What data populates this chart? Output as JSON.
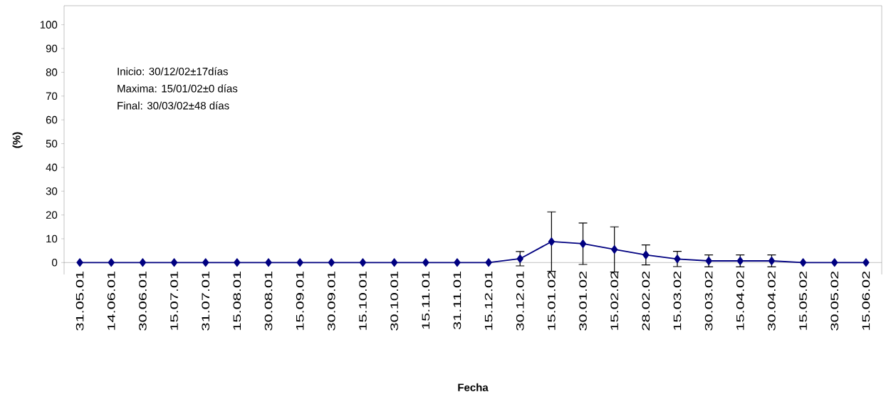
{
  "chart_data": {
    "type": "line",
    "xlabel": "Fecha",
    "ylabel": "(%)",
    "categories": [
      "31.05.01",
      "14.06.01",
      "30.06.01",
      "15.07.01",
      "31.07.01",
      "15.08.01",
      "30.08.01",
      "15.09.01",
      "30.09.01",
      "15.10.01",
      "30.10.01",
      "15.11.01",
      "31.11.01",
      "15.12.01",
      "30.12.01",
      "15.01.02",
      "30.01.02",
      "15.02.02",
      "28.02.02",
      "15.03.02",
      "30.03.02",
      "15.04.02",
      "30.04.02",
      "15.05.02",
      "30.05.02",
      "15.06.02"
    ],
    "series": [
      {
        "color": "#000080",
        "values": [
          0,
          0,
          0,
          0,
          0,
          0,
          0,
          0,
          0,
          0,
          0,
          0,
          0,
          0,
          1.6,
          8.8,
          7.9,
          5.5,
          3.2,
          1.5,
          0.7,
          0.7,
          0.7,
          0,
          0,
          0
        ],
        "errors": [
          null,
          null,
          null,
          null,
          null,
          null,
          null,
          null,
          null,
          null,
          null,
          null,
          null,
          null,
          3,
          12.5,
          8.7,
          9.5,
          4.2,
          3.2,
          2.5,
          2.5,
          2.5,
          null,
          null,
          null
        ]
      }
    ],
    "ylim": [
      -5,
      108
    ],
    "yticks": [
      0,
      10,
      20,
      30,
      40,
      50,
      60,
      70,
      80,
      90,
      100
    ],
    "marker": "diamond",
    "line_style": "solid",
    "grid": false,
    "annotations": [
      "Inicio:      30/12/02±17días",
      "Maxima:  15/01/02±0 días",
      "Final:        30/03/02±48 días"
    ]
  }
}
